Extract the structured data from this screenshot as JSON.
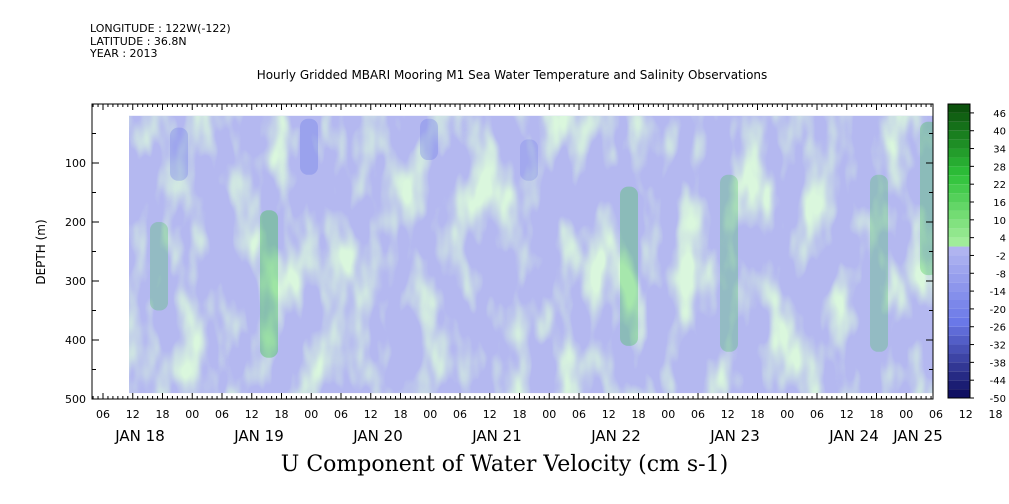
{
  "header": {
    "longitude": "LONGITUDE : 122W(-122)",
    "latitude": "LATITUDE : 36.8N",
    "year": "YEAR : 2013"
  },
  "chart_data": {
    "type": "heatmap",
    "title": "Hourly Gridded MBARI Mooring M1 Sea Water Temperature and Salinity Observations",
    "main_title": "U Component of Water Velocity (cm s-1)",
    "ylabel": "DEPTH (m)",
    "ylim": [
      500,
      0
    ],
    "yticks": [
      100,
      200,
      300,
      400,
      500
    ],
    "x_hour_labels": [
      "06",
      "12",
      "18",
      "00",
      "06",
      "12",
      "18",
      "00",
      "06",
      "12",
      "18",
      "00",
      "06",
      "12",
      "18",
      "00",
      "06",
      "12",
      "18",
      "00",
      "06",
      "12",
      "18",
      "00",
      "06",
      "12",
      "18",
      "00",
      "06",
      "12",
      "18",
      "00"
    ],
    "x_day_labels": [
      "JAN 18",
      "JAN 19",
      "JAN 20",
      "JAN 21",
      "JAN 22",
      "JAN 23",
      "JAN 24",
      "JAN 25"
    ],
    "colorbar_labels": [
      "46",
      "40",
      "34",
      "28",
      "22",
      "16",
      "10",
      "4",
      "-2",
      "-8",
      "-14",
      "-20",
      "-26",
      "-32",
      "-38",
      "-44",
      "-50"
    ],
    "colorbar_range": [
      -50,
      49
    ],
    "data_depth_range": [
      20,
      490
    ],
    "colors": {
      "positive_max": "#0a4a0a",
      "positive_mid": "#2ec23a",
      "positive_light": "#a8f0a0",
      "negative_light": "#b4b8f0",
      "negative_mid": "#6a78e8",
      "negative_max": "#0a0a5a"
    }
  }
}
